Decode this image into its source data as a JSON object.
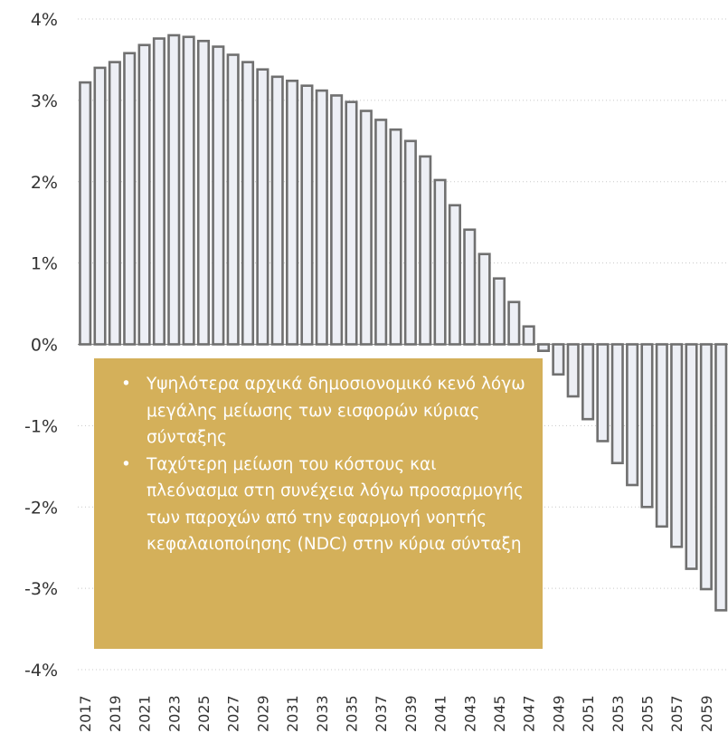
{
  "colors": {
    "bar_fill": "#edeff5",
    "bar_stroke": "#707070",
    "note_background": "#d4b05a",
    "note_text": "#ffffff"
  },
  "note": {
    "bullets": [
      "Υψηλότερα αρχικά δημοσιονομικό κενό λόγω μεγάλης μείωσης των εισφορών κύριας σύνταξης",
      "Ταχύτερη μείωση του κόστους και πλεόνασμα στη συνέχεια λόγω προσαρμογής των παροχών από την εφαρμογή νοητής κεφαλαιοποίησης (NDC) στην κύρια σύνταξη"
    ]
  },
  "chart_data": {
    "type": "bar",
    "title": "",
    "xlabel": "",
    "ylabel": "",
    "ylim": [
      -4,
      4
    ],
    "y_ticks": [
      4,
      3,
      2,
      1,
      0,
      -1,
      -2,
      -3,
      -4
    ],
    "y_tick_labels": [
      "4%",
      "3%",
      "2%",
      "1%",
      "0%",
      "-1%",
      "-2%",
      "-3%",
      "-4%"
    ],
    "grid": true,
    "categories": [
      "2017",
      "2018",
      "2019",
      "2020",
      "2021",
      "2022",
      "2023",
      "2024",
      "2025",
      "2026",
      "2027",
      "2028",
      "2029",
      "2030",
      "2031",
      "2032",
      "2033",
      "2034",
      "2035",
      "2036",
      "2037",
      "2038",
      "2039",
      "2040",
      "2041",
      "2042",
      "2043",
      "2044",
      "2045",
      "2046",
      "2047",
      "2048",
      "2049",
      "2050",
      "2051",
      "2052",
      "2053",
      "2054",
      "2055",
      "2056",
      "2057",
      "2058",
      "2059",
      "2060"
    ],
    "x_tick_labels": [
      "2017",
      "2019",
      "2021",
      "2023",
      "2025",
      "2027",
      "2029",
      "2031",
      "2033",
      "2035",
      "2037",
      "2039",
      "2041",
      "2043",
      "2045",
      "2047",
      "2049",
      "2051",
      "2053",
      "2055",
      "2057",
      "2059"
    ],
    "values": [
      3.22,
      3.4,
      3.47,
      3.58,
      3.68,
      3.76,
      3.8,
      3.78,
      3.73,
      3.66,
      3.56,
      3.47,
      3.38,
      3.29,
      3.24,
      3.18,
      3.12,
      3.06,
      2.98,
      2.87,
      2.76,
      2.64,
      2.5,
      2.31,
      2.02,
      1.71,
      1.41,
      1.11,
      0.81,
      0.52,
      0.22,
      -0.08,
      -0.37,
      -0.64,
      -0.92,
      -1.19,
      -1.46,
      -1.73,
      -2.0,
      -2.24,
      -2.49,
      -2.76,
      -3.01,
      -3.27
    ]
  }
}
